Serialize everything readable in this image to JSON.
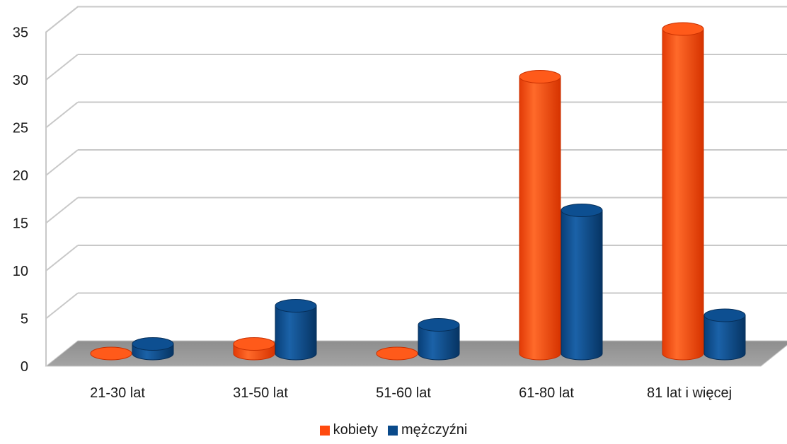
{
  "chart_data": {
    "type": "bar",
    "style": "3d-cylinder",
    "categories": [
      "21-30 lat",
      "31-50 lat",
      "51-60 lat",
      "61-80 lat",
      "81 lat i więcej"
    ],
    "series": [
      {
        "name": "kobiety",
        "values": [
          0,
          1,
          0,
          29,
          34
        ],
        "color": "#ff4a0f"
      },
      {
        "name": "mężczyźni",
        "values": [
          1,
          5,
          3,
          15,
          4
        ],
        "color": "#0a4a8a"
      }
    ],
    "ylim": [
      0,
      35
    ],
    "yticks": [
      0,
      5,
      10,
      15,
      20,
      25,
      30,
      35
    ],
    "grid": true,
    "legend_position": "bottom"
  }
}
